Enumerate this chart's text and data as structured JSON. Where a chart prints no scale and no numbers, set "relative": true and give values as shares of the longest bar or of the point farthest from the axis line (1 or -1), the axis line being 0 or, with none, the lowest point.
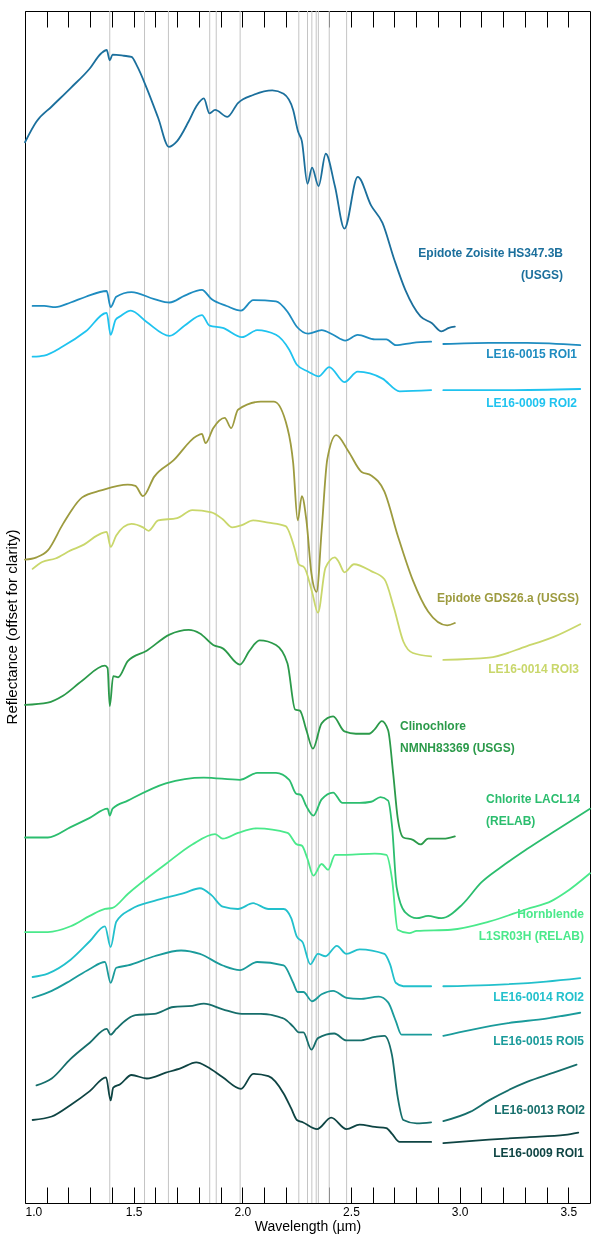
{
  "chart_data": {
    "type": "line",
    "relative": true,
    "xlabel": "Wavelength (µm)",
    "ylabel": "Reflectance (offset for clarity)",
    "tick_labels": "x",
    "xlim": [
      1.0,
      3.6
    ],
    "xticks": [
      {
        "value": 1.0,
        "label": "1.0"
      },
      {
        "value": 1.1,
        "label": null
      },
      {
        "value": 1.2,
        "label": null
      },
      {
        "value": 1.3,
        "label": null
      },
      {
        "value": 1.4,
        "label": null
      },
      1.5,
      {
        "value": 1.6,
        "label": null
      },
      {
        "value": 1.7,
        "label": null
      },
      {
        "value": 1.8,
        "label": null
      },
      {
        "value": 1.9,
        "label": null
      },
      {
        "value": 2.0,
        "label": "2.0"
      },
      {
        "value": 2.1,
        "label": null
      },
      {
        "value": 2.2,
        "label": null
      },
      {
        "value": 2.3,
        "label": null
      },
      {
        "value": 2.4,
        "label": null
      },
      2.5,
      {
        "value": 2.6,
        "label": null
      },
      {
        "value": 2.7,
        "label": null
      },
      {
        "value": 2.8,
        "label": null
      },
      {
        "value": 2.9,
        "label": null
      },
      {
        "value": 3.0,
        "label": "3.0"
      },
      {
        "value": 3.1,
        "label": null
      },
      {
        "value": 3.2,
        "label": null
      },
      {
        "value": 3.3,
        "label": null
      },
      {
        "value": 3.4,
        "label": null
      },
      3.5
    ],
    "ref_lines": [
      {
        "axis": "x",
        "value": 1.39,
        "color": "#c4c4c4"
      },
      {
        "axis": "x",
        "value": 1.55,
        "color": "#c4c4c4"
      },
      {
        "axis": "x",
        "value": 1.66,
        "color": "#c4c4c4"
      },
      {
        "axis": "x",
        "value": 1.85,
        "color": "#c4c4c4"
      },
      {
        "axis": "x",
        "value": 1.88,
        "color": "#c4c4c4"
      },
      {
        "axis": "x",
        "value": 1.99,
        "color": "#c4c4c4"
      },
      {
        "axis": "x",
        "value": 2.26,
        "color": "#c4c4c4"
      },
      {
        "axis": "x",
        "value": 2.3,
        "color": "#c4c4c4"
      },
      {
        "axis": "x",
        "value": 2.32,
        "color": "#c4c4c4"
      },
      {
        "axis": "x",
        "value": 2.34,
        "color": "#c4c4c4"
      },
      {
        "axis": "x",
        "value": 2.35,
        "color": "#c4c4c4"
      },
      {
        "axis": "x",
        "value": 2.4,
        "color": "#c4c4c4"
      },
      {
        "axis": "x",
        "value": 2.48,
        "color": "#c4c4c4"
      }
    ],
    "series": [
      {
        "name": "Epidote Zoisite HS347.3B (USGS)",
        "color": "#1b6f9c",
        "x": [
          1.0,
          1.053,
          1.123,
          1.21,
          1.298,
          1.35,
          1.376,
          1.39,
          1.403,
          1.455,
          1.49,
          1.516,
          1.56,
          1.613,
          1.662,
          1.7,
          1.753,
          1.788,
          1.823,
          1.849,
          1.875,
          1.931,
          1.98,
          2.05,
          2.138,
          2.19,
          2.234,
          2.257,
          2.274,
          2.3,
          2.321,
          2.351,
          2.384,
          2.426,
          2.47,
          2.531,
          2.593,
          2.645,
          2.698,
          2.75,
          2.82,
          2.873,
          2.916,
          2.951,
          2.978
        ],
        "values": [
          0.92,
          0.938,
          0.951,
          0.967,
          0.984,
          0.997,
          1.0,
          0.991,
          0.996,
          0.995,
          0.994,
          0.986,
          0.967,
          0.941,
          0.916,
          0.921,
          0.938,
          0.951,
          0.958,
          0.945,
          0.948,
          0.942,
          0.954,
          0.961,
          0.965,
          0.962,
          0.948,
          0.929,
          0.921,
          0.884,
          0.898,
          0.882,
          0.91,
          0.882,
          0.845,
          0.89,
          0.865,
          0.85,
          0.819,
          0.792,
          0.769,
          0.763,
          0.756,
          0.759,
          0.76
        ]
      },
      {
        "name": "LE16-0015 ROI1",
        "color": "#1e8cc0",
        "x": [
          1.035,
          1.088,
          1.14,
          1.21,
          1.28,
          1.376,
          1.394,
          1.42,
          1.49,
          1.595,
          1.665,
          1.735,
          1.814,
          1.858,
          1.928,
          1.994,
          2.05,
          2.155,
          2.208,
          2.251,
          2.304,
          2.365,
          2.418,
          2.474,
          2.531,
          2.61,
          2.663,
          2.706,
          2.785,
          2.869,
          2.895,
          2.925,
          3.135,
          3.31,
          3.555
        ],
        "values": [
          0.778,
          0.778,
          0.777,
          0.781,
          0.786,
          0.791,
          0.777,
          0.786,
          0.79,
          0.784,
          0.781,
          0.787,
          0.792,
          0.784,
          0.778,
          0.774,
          0.783,
          0.782,
          0.773,
          0.76,
          0.754,
          0.757,
          0.753,
          0.748,
          0.753,
          0.749,
          0.749,
          0.744,
          0.746,
          0.747,
          null,
          0.745,
          0.746,
          0.746,
          0.744
        ]
      },
      {
        "name": "LE16-0009 ROI2",
        "color": "#1fc3ef",
        "x": [
          1.035,
          1.088,
          1.175,
          1.28,
          1.376,
          1.394,
          1.417,
          1.438,
          1.487,
          1.56,
          1.665,
          1.735,
          1.814,
          1.849,
          1.91,
          1.998,
          2.068,
          2.155,
          2.216,
          2.251,
          2.304,
          2.351,
          2.4,
          2.47,
          2.531,
          2.645,
          2.724,
          2.869,
          2.895,
          2.925,
          3.223,
          3.555
        ],
        "values": [
          0.734,
          0.735,
          0.743,
          0.756,
          0.772,
          0.753,
          0.766,
          0.769,
          0.774,
          0.764,
          0.752,
          0.761,
          0.77,
          0.761,
          0.759,
          0.751,
          0.757,
          0.753,
          0.74,
          0.727,
          0.721,
          0.717,
          0.725,
          0.712,
          0.721,
          0.715,
          0.704,
          0.705,
          null,
          0.705,
          0.705,
          0.706
        ]
      },
      {
        "name": "Epidote GDS26.a (USGS)",
        "color": "#9d9b3f",
        "x": [
          1.0,
          1.053,
          1.105,
          1.175,
          1.263,
          1.35,
          1.473,
          1.508,
          1.543,
          1.595,
          1.683,
          1.788,
          1.814,
          1.831,
          1.866,
          1.919,
          1.949,
          1.98,
          2.085,
          2.146,
          2.208,
          2.234,
          2.255,
          2.274,
          2.295,
          2.318,
          2.342,
          2.365,
          2.391,
          2.432,
          2.488,
          2.549,
          2.593,
          2.654,
          2.715,
          2.785,
          2.855,
          2.943,
          2.978
        ],
        "values": [
          0.558,
          0.56,
          0.566,
          0.589,
          0.612,
          0.618,
          0.623,
          0.622,
          0.613,
          0.63,
          0.644,
          0.665,
          0.667,
          0.659,
          0.672,
          0.681,
          0.672,
          0.688,
          0.695,
          0.695,
          0.672,
          0.642,
          0.592,
          0.613,
          0.592,
          0.546,
          0.53,
          0.583,
          0.645,
          0.666,
          0.652,
          0.634,
          0.631,
          0.617,
          0.579,
          0.54,
          0.513,
          0.501,
          0.503
        ]
      },
      {
        "name": "LE16-0014 ROI3",
        "color": "#c9d76b",
        "x": [
          1.035,
          1.079,
          1.14,
          1.21,
          1.271,
          1.333,
          1.376,
          1.394,
          1.42,
          1.49,
          1.543,
          1.569,
          1.613,
          1.7,
          1.77,
          1.858,
          1.91,
          1.954,
          1.998,
          2.05,
          2.12,
          2.199,
          2.243,
          2.26,
          2.286,
          2.321,
          2.348,
          2.383,
          2.426,
          2.444,
          2.47,
          2.514,
          2.593,
          2.654,
          2.698,
          2.741,
          2.785,
          2.869,
          2.895,
          2.925,
          3.135,
          3.31,
          3.433,
          3.555
        ],
        "values": [
          0.55,
          0.556,
          0.559,
          0.566,
          0.571,
          0.579,
          0.582,
          0.569,
          0.579,
          0.589,
          0.586,
          0.583,
          0.592,
          0.594,
          0.601,
          0.599,
          0.593,
          0.586,
          0.588,
          0.592,
          0.59,
          0.587,
          0.566,
          0.554,
          0.551,
          0.53,
          0.512,
          0.551,
          0.56,
          0.556,
          0.547,
          0.554,
          0.548,
          0.541,
          0.516,
          0.487,
          0.477,
          0.474,
          null,
          0.471,
          0.473,
          0.483,
          0.491,
          0.502
        ]
      },
      {
        "name": "Clinochlore NMNH83369 (USGS)",
        "color": "#2b9a4a",
        "x": [
          1.0,
          1.105,
          1.175,
          1.263,
          1.368,
          1.38,
          1.39,
          1.406,
          1.429,
          1.473,
          1.56,
          1.665,
          1.753,
          1.805,
          1.866,
          1.91,
          1.989,
          2.033,
          2.08,
          2.155,
          2.208,
          2.243,
          2.265,
          2.295,
          2.325,
          2.365,
          2.418,
          2.47,
          2.523,
          2.584,
          2.61,
          2.642,
          2.671,
          2.694,
          2.715,
          2.741,
          2.785,
          2.82,
          2.855,
          2.925,
          2.978
        ],
        "values": [
          0.432,
          0.434,
          0.44,
          0.453,
          0.466,
          0.464,
          0.431,
          0.457,
          0.456,
          0.47,
          0.479,
          0.493,
          0.497,
          0.494,
          0.484,
          0.481,
          0.467,
          0.479,
          0.488,
          0.484,
          0.468,
          0.428,
          0.427,
          0.41,
          0.394,
          0.416,
          0.422,
          0.409,
          0.407,
          0.407,
          0.411,
          0.418,
          0.41,
          0.373,
          0.334,
          0.317,
          0.315,
          0.311,
          0.316,
          0.316,
          0.318
        ]
      },
      {
        "name": "Chlorite LACL14 (RELAB)",
        "color": "#2bbd6e",
        "x": [
          1.0,
          1.105,
          1.21,
          1.298,
          1.38,
          1.39,
          1.403,
          1.473,
          1.648,
          1.823,
          1.989,
          2.068,
          2.155,
          2.216,
          2.248,
          2.269,
          2.295,
          2.327,
          2.365,
          2.418,
          2.461,
          2.54,
          2.593,
          2.636,
          2.671,
          2.689,
          2.71,
          2.75,
          2.803,
          2.855,
          2.916,
          3.013,
          3.1,
          3.188,
          3.31,
          3.45,
          3.6
        ],
        "values": [
          0.317,
          0.317,
          0.326,
          0.334,
          0.342,
          0.336,
          0.342,
          0.349,
          0.364,
          0.369,
          0.367,
          0.373,
          0.373,
          0.367,
          0.355,
          0.354,
          0.344,
          0.336,
          0.35,
          0.356,
          0.347,
          0.347,
          0.348,
          0.352,
          0.349,
          0.327,
          0.274,
          0.252,
          0.247,
          0.249,
          0.247,
          0.259,
          0.278,
          0.291,
          0.307,
          0.324,
          0.342
        ]
      },
      {
        "name": "Hornblende L1SR03H (RELAB)",
        "color": "#4ae98b",
        "x": [
          1.0,
          1.105,
          1.21,
          1.298,
          1.368,
          1.403,
          1.473,
          1.648,
          1.77,
          1.875,
          1.91,
          1.98,
          2.068,
          2.208,
          2.251,
          2.274,
          2.299,
          2.327,
          2.365,
          2.395,
          2.427,
          2.479,
          2.61,
          2.663,
          2.689,
          2.715,
          2.768,
          2.803,
          2.96,
          3.135,
          3.31,
          3.424,
          3.485,
          3.6
        ],
        "values": [
          0.235,
          0.235,
          0.24,
          0.249,
          0.255,
          0.256,
          0.268,
          0.294,
          0.311,
          0.32,
          0.316,
          0.321,
          0.325,
          0.321,
          0.311,
          0.31,
          0.299,
          0.284,
          0.294,
          0.289,
          0.302,
          0.302,
          0.303,
          0.302,
          0.281,
          0.237,
          0.234,
          0.236,
          0.237,
          0.244,
          0.255,
          0.262,
          0.269,
          0.286
        ]
      },
      {
        "name": "LE16-0014 ROI2",
        "color": "#22c0cc",
        "x": [
          1.035,
          1.105,
          1.21,
          1.298,
          1.368,
          1.394,
          1.42,
          1.49,
          1.595,
          1.735,
          1.805,
          1.858,
          1.91,
          1.98,
          2.05,
          2.12,
          2.19,
          2.225,
          2.251,
          2.278,
          2.313,
          2.348,
          2.383,
          2.435,
          2.479,
          2.54,
          2.654,
          2.68,
          2.706,
          2.741,
          2.869,
          2.895,
          2.925,
          3.135,
          3.398,
          3.555
        ],
        "values": [
          0.196,
          0.199,
          0.211,
          0.227,
          0.24,
          0.222,
          0.244,
          0.255,
          0.262,
          0.269,
          0.273,
          0.267,
          0.257,
          0.255,
          0.26,
          0.255,
          0.255,
          0.247,
          0.231,
          0.226,
          0.207,
          0.216,
          0.214,
          0.223,
          0.216,
          0.22,
          0.216,
          0.207,
          0.191,
          0.188,
          0.188,
          null,
          0.188,
          0.189,
          0.192,
          0.195
        ]
      },
      {
        "name": "LE16-0015 ROI5",
        "color": "#1a9b9b",
        "x": [
          1.035,
          1.123,
          1.21,
          1.298,
          1.368,
          1.394,
          1.42,
          1.473,
          1.595,
          1.718,
          1.805,
          1.91,
          1.989,
          2.068,
          2.19,
          2.234,
          2.255,
          2.281,
          2.321,
          2.365,
          2.418,
          2.479,
          2.54,
          2.628,
          2.671,
          2.706,
          2.733,
          2.869,
          2.895,
          2.925,
          3.048,
          3.223,
          3.398,
          3.555
        ],
        "values": [
          0.178,
          0.184,
          0.193,
          0.203,
          0.209,
          0.191,
          0.204,
          0.206,
          0.214,
          0.219,
          0.216,
          0.206,
          0.202,
          0.209,
          0.206,
          0.191,
          0.183,
          0.183,
          0.175,
          0.181,
          0.184,
          0.178,
          0.177,
          0.179,
          0.174,
          0.158,
          0.146,
          0.146,
          null,
          0.145,
          0.15,
          0.156,
          0.16,
          0.165
        ]
      },
      {
        "name": "LE16-0013 ROI2",
        "color": "#166e6b",
        "x": [
          1.053,
          1.123,
          1.21,
          1.298,
          1.376,
          1.394,
          1.42,
          1.508,
          1.595,
          1.683,
          1.77,
          1.823,
          1.91,
          1.998,
          2.085,
          2.19,
          2.234,
          2.26,
          2.281,
          2.318,
          2.348,
          2.423,
          2.479,
          2.54,
          2.61,
          2.654,
          2.689,
          2.715,
          2.741,
          2.803,
          2.869,
          2.895,
          2.925,
          3.048,
          3.135,
          3.31,
          3.433,
          3.538
        ],
        "values": [
          0.102,
          0.108,
          0.125,
          0.139,
          0.151,
          0.146,
          0.151,
          0.163,
          0.164,
          0.17,
          0.171,
          0.173,
          0.168,
          0.164,
          0.164,
          0.16,
          0.153,
          0.148,
          0.148,
          0.133,
          0.143,
          0.147,
          0.141,
          0.141,
          0.144,
          0.145,
          0.128,
          0.092,
          0.072,
          0.069,
          0.07,
          null,
          0.071,
          0.079,
          0.089,
          0.105,
          0.113,
          0.12
        ]
      },
      {
        "name": "LE16-0009 ROI1",
        "color": "#0e4443",
        "x": [
          1.035,
          1.123,
          1.21,
          1.298,
          1.373,
          1.394,
          1.406,
          1.438,
          1.49,
          1.56,
          1.648,
          1.718,
          1.788,
          1.84,
          1.91,
          1.994,
          2.05,
          2.12,
          2.19,
          2.225,
          2.251,
          2.278,
          2.344,
          2.409,
          2.479,
          2.54,
          2.61,
          2.663,
          2.689,
          2.724,
          2.869,
          2.895,
          2.925,
          3.135,
          3.31,
          3.485,
          3.546
        ],
        "values": [
          0.072,
          0.075,
          0.085,
          0.097,
          0.109,
          0.089,
          0.1,
          0.103,
          0.111,
          0.108,
          0.113,
          0.117,
          0.122,
          0.118,
          0.109,
          0.099,
          0.112,
          0.11,
          0.095,
          0.082,
          0.072,
          0.07,
          0.064,
          0.074,
          0.064,
          0.068,
          0.066,
          0.065,
          0.06,
          0.053,
          0.053,
          null,
          0.052,
          0.055,
          0.057,
          0.059,
          0.061
        ]
      }
    ]
  }
}
